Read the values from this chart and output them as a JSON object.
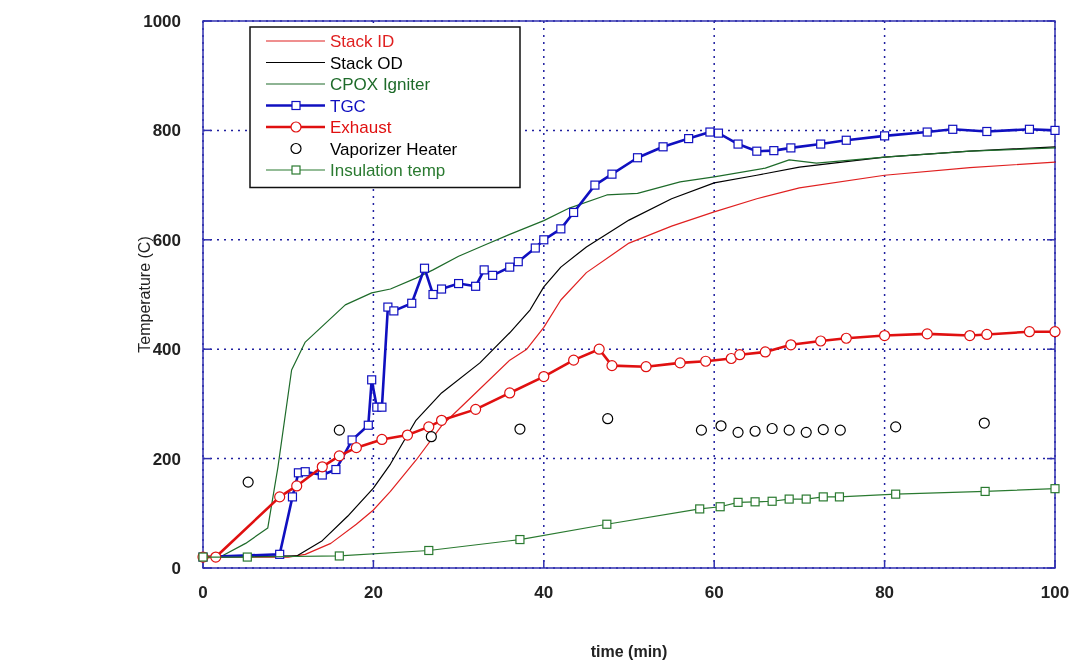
{
  "chart_data": {
    "type": "line",
    "xlabel": "time (min)",
    "ylabel": "Temperature (C)",
    "xlim": [
      0,
      100
    ],
    "ylim": [
      0,
      1000
    ],
    "xticks": [
      0,
      20,
      40,
      60,
      80,
      100
    ],
    "yticks": [
      0,
      200,
      400,
      600,
      800,
      1000
    ],
    "grid": true,
    "legend": "top left",
    "series": [
      {
        "name": "Stack ID",
        "color": "#e02020",
        "marker": "none",
        "x": [
          0,
          10,
          12,
          15,
          18,
          20,
          22,
          25,
          28,
          32,
          36,
          38,
          40,
          42,
          45,
          50,
          55,
          60,
          65,
          70,
          80,
          90,
          100
        ],
        "values": [
          20,
          20,
          25,
          45,
          80,
          106,
          140,
          197,
          260,
          320,
          380,
          400,
          440,
          490,
          540,
          594,
          625,
          651,
          675,
          695,
          718,
          732,
          742
        ]
      },
      {
        "name": "Stack OD",
        "color": "#000000",
        "marker": "none",
        "x": [
          0,
          11,
          14,
          17,
          20,
          22,
          25,
          28,
          32.5,
          36,
          38.4,
          40,
          42,
          45,
          50,
          55,
          60,
          65,
          70,
          80,
          90,
          100
        ],
        "values": [
          20,
          22,
          50,
          95,
          146,
          190,
          270,
          320,
          375,
          430,
          472,
          514,
          550,
          587,
          636,
          675,
          704,
          718,
          733,
          751,
          762,
          770
        ]
      },
      {
        "name": "CPOX Igniter",
        "color": "#1e6b2a",
        "marker": "none",
        "x": [
          0,
          2,
          5,
          7.6,
          8.8,
          10.4,
          12,
          16.7,
          19.8,
          22,
          25,
          27,
          30,
          33,
          36,
          40,
          43,
          47.4,
          51,
          56,
          60,
          66,
          68.8,
          72,
          80,
          90,
          100
        ],
        "values": [
          20,
          20,
          45,
          73,
          185,
          362,
          413,
          481,
          503,
          510,
          530,
          545,
          570,
          590,
          610,
          635,
          658,
          682,
          685,
          706,
          715,
          731,
          746,
          740,
          751,
          762,
          768
        ]
      },
      {
        "name": "TGC",
        "color": "#1010c0",
        "marker": "square",
        "x": [
          0,
          9,
          10.5,
          11.2,
          12,
          14,
          15.6,
          17.5,
          19.4,
          19.8,
          20.4,
          21,
          21.7,
          22.4,
          24.5,
          26,
          27,
          28,
          30,
          32,
          33,
          34,
          36,
          37,
          39,
          40,
          42,
          43.5,
          46,
          48,
          51,
          54,
          57,
          59.5,
          60.5,
          62.8,
          65,
          67,
          69,
          72.5,
          75.5,
          80,
          85,
          88,
          92,
          97,
          100
        ],
        "values": [
          20,
          25,
          130,
          174,
          176,
          170,
          180,
          234,
          261,
          344,
          294,
          294,
          477,
          470,
          484,
          548,
          500,
          510,
          520,
          515,
          545,
          535,
          550,
          560,
          585,
          600,
          620,
          650,
          700,
          720,
          750,
          770,
          785,
          797,
          795,
          775,
          762,
          763,
          768,
          775,
          782,
          790,
          797,
          802,
          798,
          802,
          800
        ]
      },
      {
        "name": "Exhaust",
        "color": "#e01010",
        "marker": "circle",
        "x": [
          0,
          1.5,
          9,
          11,
          14,
          16,
          18,
          21,
          24,
          26.5,
          28,
          32,
          36,
          40,
          43.5,
          46.5,
          48,
          52,
          56,
          59,
          62,
          63,
          66,
          69,
          72.5,
          75.5,
          80,
          85,
          90,
          92,
          97,
          100
        ],
        "values": [
          20,
          20,
          130,
          150,
          185,
          205,
          220,
          235,
          243,
          258,
          270,
          290,
          320,
          350,
          380,
          400,
          370,
          368,
          375,
          378,
          383,
          390,
          395,
          408,
          415,
          420,
          425,
          428,
          425,
          427,
          432,
          432
        ]
      },
      {
        "name": "Vaporizer Heater",
        "type": "scatter",
        "color": "#000000",
        "marker": "circle",
        "x": [
          5.3,
          16,
          26.8,
          37.2,
          47.5,
          58.5,
          60.8,
          62.8,
          64.8,
          66.8,
          68.8,
          70.8,
          72.8,
          74.8,
          81.3,
          91.7
        ],
        "values": [
          157,
          252,
          240,
          254,
          273,
          252,
          260,
          248,
          250,
          255,
          252,
          248,
          253,
          252,
          258,
          265
        ]
      },
      {
        "name": "Insulation temp",
        "color": "#2a7a30",
        "marker": "square",
        "x": [
          0,
          5.2,
          16,
          26.5,
          37.2,
          47.4,
          58.3,
          60.7,
          62.8,
          64.8,
          66.8,
          68.8,
          70.8,
          72.8,
          74.7,
          81.3,
          91.8,
          100
        ],
        "values": [
          20,
          20,
          22,
          32,
          52,
          80,
          108,
          112,
          120,
          121,
          122,
          126,
          126,
          130,
          130,
          135,
          140,
          145
        ]
      }
    ]
  }
}
